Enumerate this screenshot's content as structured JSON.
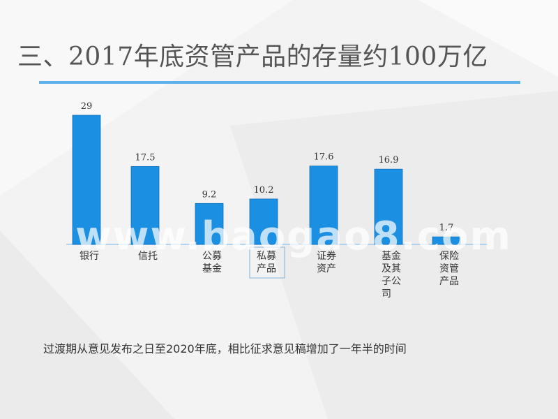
{
  "slide": {
    "title": "三、2017年底资管产品的存量约100万亿",
    "watermark": "www.baogao8.com",
    "footnote": "过渡期从意见发布之日至2020年底，相比征求意见稿增加了一年半的时间"
  },
  "colors": {
    "bar": "#1b8fe2",
    "rule": "#5db0ea",
    "text": "#333333"
  },
  "chart_data": {
    "type": "bar",
    "categories": [
      [
        "银行"
      ],
      [
        "信托"
      ],
      [
        "公募",
        "基金"
      ],
      [
        "私募",
        "产品"
      ],
      [
        "证券",
        "资产"
      ],
      [
        "基金",
        "及其",
        "子公",
        "司"
      ],
      [
        "保险",
        "资管",
        "产品"
      ]
    ],
    "values": [
      29,
      17.5,
      9.2,
      10.2,
      17.6,
      16.9,
      1.7
    ],
    "title": "",
    "xlabel": "",
    "ylabel": "",
    "ylim": [
      0,
      29
    ]
  }
}
